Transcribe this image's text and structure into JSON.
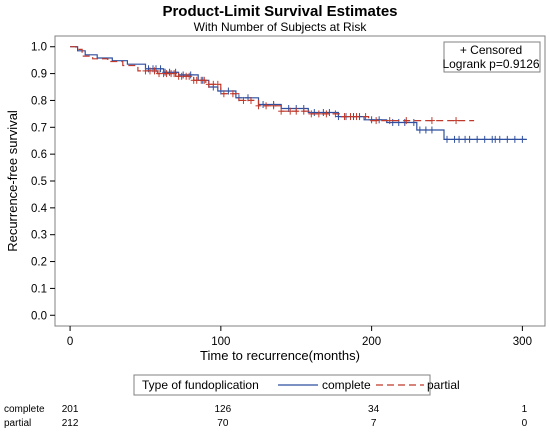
{
  "chart_data": {
    "type": "line",
    "title": "Product-Limit Survival Estimates",
    "subtitle": "With Number of Subjects at Risk",
    "xlabel": "Time to recurrence(months)",
    "ylabel": "Recurrence-free survival",
    "xlim": [
      -10,
      315
    ],
    "ylim": [
      -0.04,
      1.04
    ],
    "x_ticks": [
      0,
      100,
      200,
      300
    ],
    "y_ticks": [
      0.0,
      0.1,
      0.2,
      0.3,
      0.4,
      0.5,
      0.6,
      0.7,
      0.8,
      0.9,
      1.0
    ],
    "y_tick_labels": [
      "0.0",
      "0.1",
      "0.2",
      "0.3",
      "0.4",
      "0.5",
      "0.6",
      "0.7",
      "0.8",
      "0.9",
      "1.0"
    ],
    "grid": false,
    "inset": {
      "censored_label": "+ Censored",
      "logrank_label": "Logrank p=0.9126",
      "placement": "top-right"
    },
    "legend": {
      "title": "Type of fundoplication",
      "placement": "bottom"
    },
    "series": [
      {
        "name": "complete",
        "color": "#2f4f9f",
        "dash": "solid",
        "steps": [
          [
            0,
            1.0
          ],
          [
            5,
            0.985
          ],
          [
            10,
            0.97
          ],
          [
            18,
            0.958
          ],
          [
            28,
            0.948
          ],
          [
            38,
            0.935
          ],
          [
            50,
            0.918
          ],
          [
            62,
            0.905
          ],
          [
            72,
            0.895
          ],
          [
            85,
            0.875
          ],
          [
            92,
            0.85
          ],
          [
            98,
            0.835
          ],
          [
            110,
            0.81
          ],
          [
            125,
            0.785
          ],
          [
            140,
            0.77
          ],
          [
            158,
            0.755
          ],
          [
            178,
            0.74
          ],
          [
            195,
            0.728
          ],
          [
            210,
            0.718
          ],
          [
            230,
            0.69
          ],
          [
            248,
            0.655
          ],
          [
            303,
            0.655
          ]
        ],
        "censored": [
          52,
          55,
          57,
          60,
          63,
          66,
          70,
          75,
          80,
          88,
          95,
          100,
          105,
          112,
          118,
          128,
          135,
          145,
          150,
          155,
          162,
          168,
          172,
          178,
          183,
          188,
          192,
          200,
          205,
          214,
          218,
          222,
          228,
          232,
          236,
          240,
          250,
          255,
          258,
          262,
          265,
          270,
          275,
          280,
          282,
          285,
          290,
          295,
          300
        ]
      },
      {
        "name": "partial",
        "color": "#c0392b",
        "dash": "dashed",
        "steps": [
          [
            0,
            1.0
          ],
          [
            4,
            0.99
          ],
          [
            8,
            0.965
          ],
          [
            15,
            0.955
          ],
          [
            25,
            0.945
          ],
          [
            35,
            0.93
          ],
          [
            45,
            0.91
          ],
          [
            58,
            0.9
          ],
          [
            70,
            0.89
          ],
          [
            82,
            0.875
          ],
          [
            90,
            0.86
          ],
          [
            100,
            0.825
          ],
          [
            112,
            0.8
          ],
          [
            125,
            0.78
          ],
          [
            140,
            0.76
          ],
          [
            160,
            0.75
          ],
          [
            180,
            0.74
          ],
          [
            198,
            0.725
          ],
          [
            268,
            0.725
          ]
        ],
        "censored": [
          50,
          53,
          56,
          59,
          62,
          64,
          67,
          69,
          72,
          74,
          77,
          79,
          82,
          84,
          87,
          89,
          92,
          95,
          98,
          102,
          108,
          115,
          120,
          125,
          130,
          135,
          140,
          146,
          150,
          155,
          160,
          165,
          170,
          176,
          182,
          186,
          190,
          196,
          203,
          212,
          223,
          240,
          256
        ]
      }
    ],
    "risk_table": {
      "times": [
        0,
        100,
        200,
        300
      ],
      "rows": [
        {
          "label": "complete",
          "values": [
            "201",
            "126",
            "34",
            "1"
          ]
        },
        {
          "label": "partial",
          "values": [
            "212",
            "70",
            "7",
            "0"
          ]
        }
      ]
    }
  }
}
